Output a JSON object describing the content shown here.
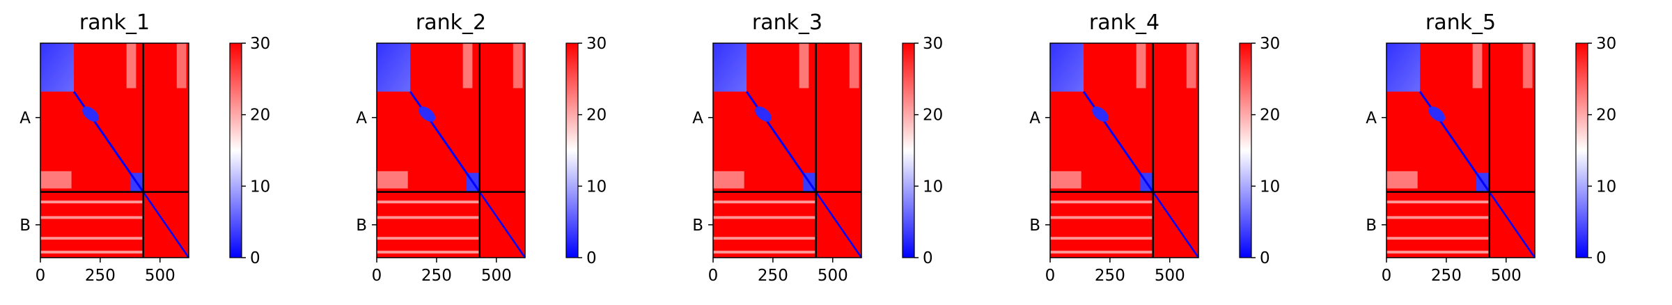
{
  "chart_data": [
    {
      "type": "heatmap",
      "title": "rank_1",
      "x_ticks": [
        "0",
        "250",
        "500"
      ],
      "y_tick_labels": [
        "A",
        "B"
      ],
      "colorbar_ticks": [
        "0",
        "10",
        "20",
        "30"
      ],
      "colorbar_range": [
        0,
        30
      ],
      "colormap": "bwr",
      "x_range": [
        0,
        620
      ],
      "chain_boundary": 430
    },
    {
      "type": "heatmap",
      "title": "rank_2",
      "x_ticks": [
        "0",
        "250",
        "500"
      ],
      "y_tick_labels": [
        "A",
        "B"
      ],
      "colorbar_ticks": [
        "0",
        "10",
        "20",
        "30"
      ],
      "colorbar_range": [
        0,
        30
      ],
      "colormap": "bwr",
      "x_range": [
        0,
        620
      ],
      "chain_boundary": 430
    },
    {
      "type": "heatmap",
      "title": "rank_3",
      "x_ticks": [
        "0",
        "250",
        "500"
      ],
      "y_tick_labels": [
        "A",
        "B"
      ],
      "colorbar_ticks": [
        "0",
        "10",
        "20",
        "30"
      ],
      "colorbar_range": [
        0,
        30
      ],
      "colormap": "bwr",
      "x_range": [
        0,
        620
      ],
      "chain_boundary": 430
    },
    {
      "type": "heatmap",
      "title": "rank_4",
      "x_ticks": [
        "0",
        "250",
        "500"
      ],
      "y_tick_labels": [
        "A",
        "B"
      ],
      "colorbar_ticks": [
        "0",
        "10",
        "20",
        "30"
      ],
      "colorbar_range": [
        0,
        30
      ],
      "colormap": "bwr",
      "x_range": [
        0,
        620
      ],
      "chain_boundary": 430
    },
    {
      "type": "heatmap",
      "title": "rank_5",
      "x_ticks": [
        "0",
        "250",
        "500"
      ],
      "y_tick_labels": [
        "A",
        "B"
      ],
      "colorbar_ticks": [
        "0",
        "10",
        "20",
        "30"
      ],
      "colorbar_range": [
        0,
        30
      ],
      "colormap": "bwr",
      "x_range": [
        0,
        620
      ],
      "chain_boundary": 430
    }
  ],
  "colors": {
    "low": "#0000ff",
    "mid": "#ffffff",
    "high": "#ff0000",
    "frame": "#000000"
  }
}
